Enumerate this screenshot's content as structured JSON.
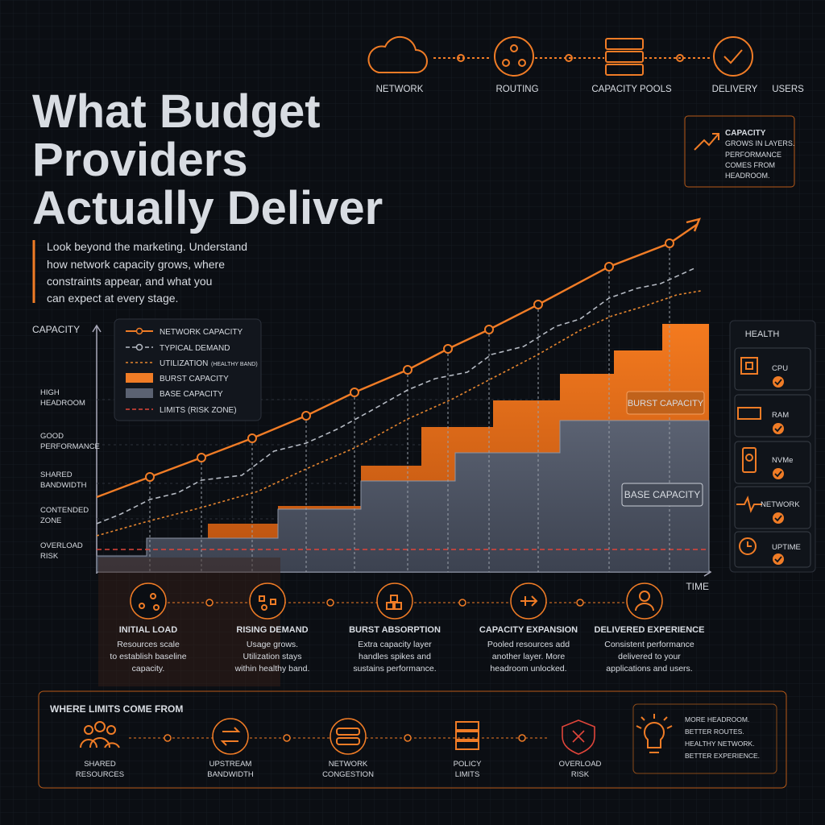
{
  "pipeline": [
    "NETWORK",
    "ROUTING",
    "CAPACITY POOLS",
    "DELIVERY",
    "USERS"
  ],
  "title": [
    "What Budget",
    "Providers",
    "Actually Deliver"
  ],
  "subtitle": [
    "Look beyond the marketing. Understand",
    "how network capacity grows, where",
    "constraints appear, and what you",
    "can expect at every stage."
  ],
  "callout": {
    "heading": "CAPACITY",
    "lines": [
      "GROWS IN LAYERS.",
      "PERFORMANCE",
      "COMES FROM",
      "HEADROOM."
    ]
  },
  "chart": {
    "y_label": "CAPACITY",
    "x_label": "TIME",
    "zones": [
      [
        "HIGH",
        "HEADROOM"
      ],
      [
        "GOOD",
        "PERFORMANCE"
      ],
      [
        "SHARED",
        "BANDWIDTH"
      ],
      [
        "CONTENDED",
        "ZONE"
      ],
      [
        "OVERLOAD",
        "RISK"
      ]
    ],
    "legend": [
      "NETWORK CAPACITY",
      "TYPICAL DEMAND",
      "UTILIZATION",
      "BURST CAPACITY",
      "BASE CAPACITY",
      "LIMITS (RISK ZONE)"
    ],
    "legend_note": "(HEALTHY BAND)",
    "area_labels": [
      "BURST CAPACITY",
      "BASE CAPACITY"
    ]
  },
  "health": {
    "title": "HEALTH",
    "items": [
      "CPU",
      "RAM",
      "NVMe",
      "NETWORK",
      "UPTIME"
    ]
  },
  "stages": [
    {
      "title": "INITIAL LOAD",
      "lines": [
        "Resources scale",
        "to establish baseline",
        "capacity."
      ]
    },
    {
      "title": "RISING DEMAND",
      "lines": [
        "Usage grows.",
        "Utilization stays",
        "within healthy band."
      ]
    },
    {
      "title": "BURST ABSORPTION",
      "lines": [
        "Extra capacity layer",
        "handles spikes and",
        "sustains performance."
      ]
    },
    {
      "title": "CAPACITY EXPANSION",
      "lines": [
        "Pooled resources add",
        "another layer. More",
        "headroom unlocked."
      ]
    },
    {
      "title": "DELIVERED EXPERIENCE",
      "lines": [
        "Consistent performance",
        "delivered to your",
        "applications and users."
      ]
    }
  ],
  "limits": {
    "title": "WHERE LIMITS COME FROM",
    "items": [
      [
        "SHARED",
        "RESOURCES"
      ],
      [
        "UPSTREAM",
        "BANDWIDTH"
      ],
      [
        "NETWORK",
        "CONGESTION"
      ],
      [
        "POLICY",
        "LIMITS"
      ],
      [
        "OVERLOAD",
        "RISK"
      ]
    ],
    "outcome": [
      "MORE HEADROOM.",
      "BETTER ROUTES.",
      "HEALTHY NETWORK.",
      "BETTER EXPERIENCE."
    ]
  }
}
